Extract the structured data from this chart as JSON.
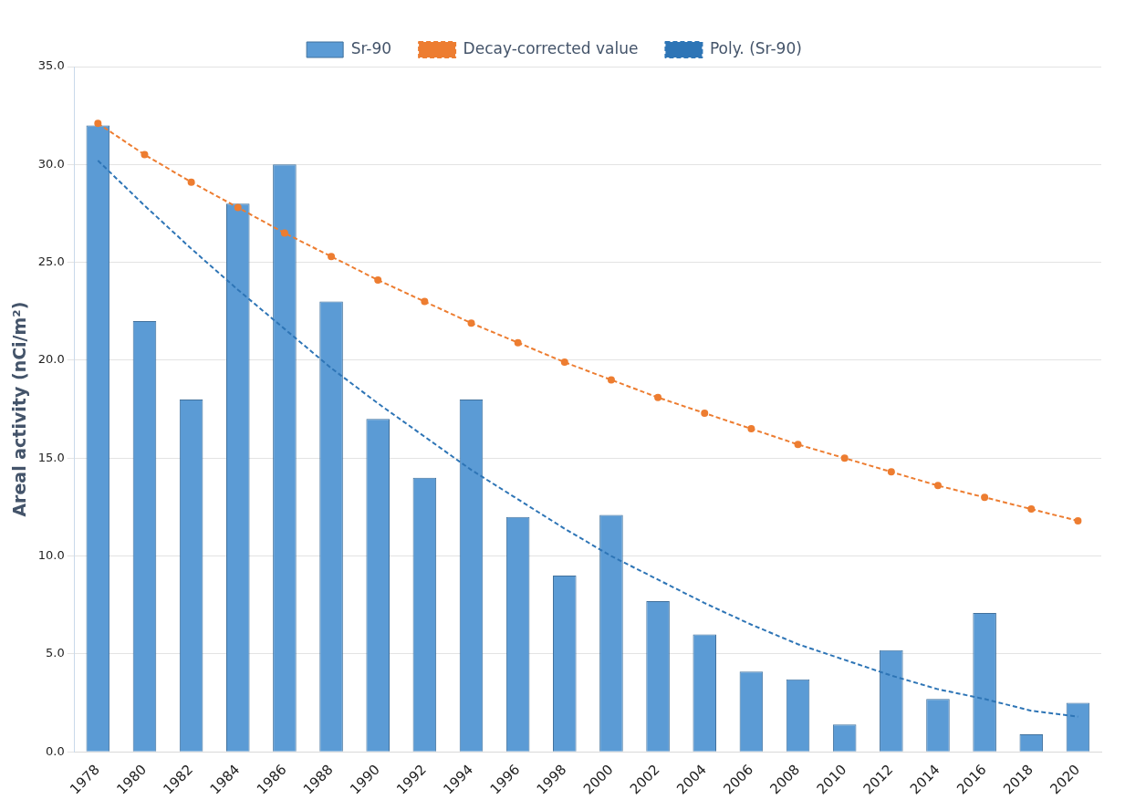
{
  "chart_data": {
    "type": "bar",
    "ylabel": "Areal activity (nCi/m²)",
    "categories": [
      "1978",
      "1980",
      "1982",
      "1984",
      "1986",
      "1988",
      "1990",
      "1992",
      "1994",
      "1996",
      "1998",
      "2000",
      "2002",
      "2004",
      "2006",
      "2008",
      "2010",
      "2012",
      "2014",
      "2016",
      "2018",
      "2020"
    ],
    "series": [
      {
        "name": "Sr-90",
        "color": "#5b9bd5",
        "values": [
          32,
          22,
          18,
          28,
          30,
          23,
          17,
          14,
          18,
          12,
          9,
          12.1,
          7.7,
          6.0,
          4.1,
          3.7,
          1.4,
          5.2,
          2.7,
          7.1,
          0.9,
          2.5
        ]
      },
      {
        "name": "Decay-corrected value",
        "type": "line",
        "color": "#ed7d31",
        "marker": "circle",
        "line_style": "dashed",
        "values": [
          32.1,
          30.5,
          29.1,
          27.8,
          26.5,
          25.3,
          24.1,
          23.0,
          21.9,
          20.9,
          19.9,
          19.0,
          18.1,
          17.3,
          16.5,
          15.7,
          15.0,
          14.3,
          13.6,
          13.0,
          12.4,
          11.8
        ]
      },
      {
        "name": "Poly. (Sr-90)",
        "type": "line",
        "color": "#2e75b6",
        "marker": "none",
        "line_style": "dashed",
        "values": [
          30.2,
          27.9,
          25.7,
          23.6,
          21.6,
          19.6,
          17.8,
          16.1,
          14.4,
          12.9,
          11.4,
          10.0,
          8.8,
          7.6,
          6.5,
          5.5,
          4.7,
          3.9,
          3.2,
          2.7,
          2.1,
          1.8
        ]
      }
    ],
    "ylim": [
      0,
      35
    ],
    "yticks": [
      {
        "value": 0,
        "label": "0.0"
      },
      {
        "value": 5,
        "label": "5.0"
      },
      {
        "value": 10,
        "label": "10.0"
      },
      {
        "value": 15,
        "label": "15.0"
      },
      {
        "value": 20,
        "label": "20.0"
      },
      {
        "value": 25,
        "label": "25.0"
      },
      {
        "value": 30,
        "label": "30.0"
      },
      {
        "value": 35,
        "label": "35.0"
      }
    ],
    "grid": "y",
    "legend": "top"
  }
}
